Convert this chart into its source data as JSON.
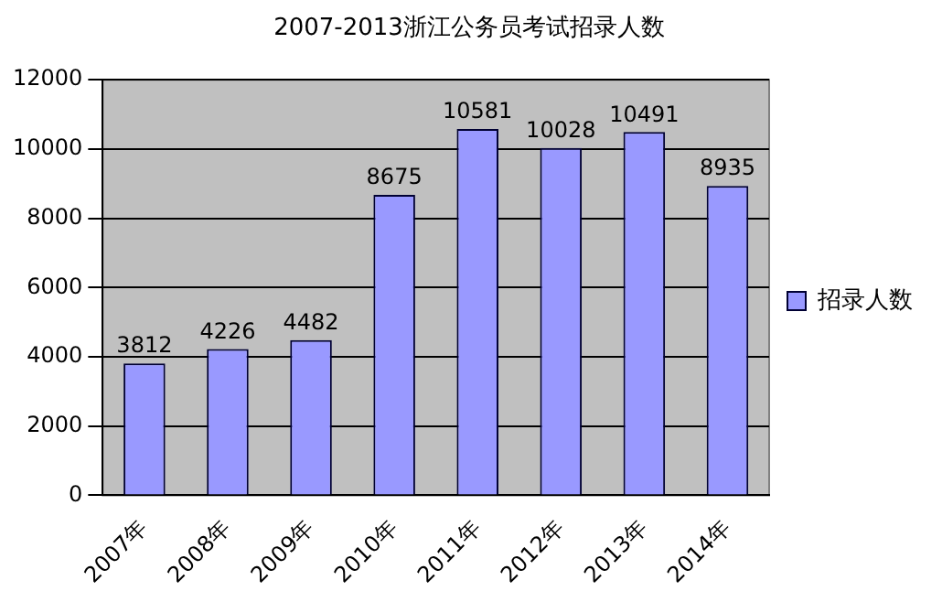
{
  "chart_data": {
    "type": "bar",
    "title": "2007-2013浙江公务员考试招录人数",
    "categories": [
      "2007年",
      "2008年",
      "2009年",
      "2010年",
      "2011年",
      "2012年",
      "2013年",
      "2014年"
    ],
    "series": [
      {
        "name": "招录人数",
        "color": "#9999ff",
        "values": [
          3812,
          4226,
          4482,
          8675,
          10581,
          10028,
          10491,
          8935
        ]
      }
    ],
    "ylim": [
      0,
      12000
    ],
    "yticks": [
      0,
      2000,
      4000,
      6000,
      8000,
      10000,
      12000
    ],
    "grid": "y",
    "legend": "right",
    "data_labels": true
  }
}
